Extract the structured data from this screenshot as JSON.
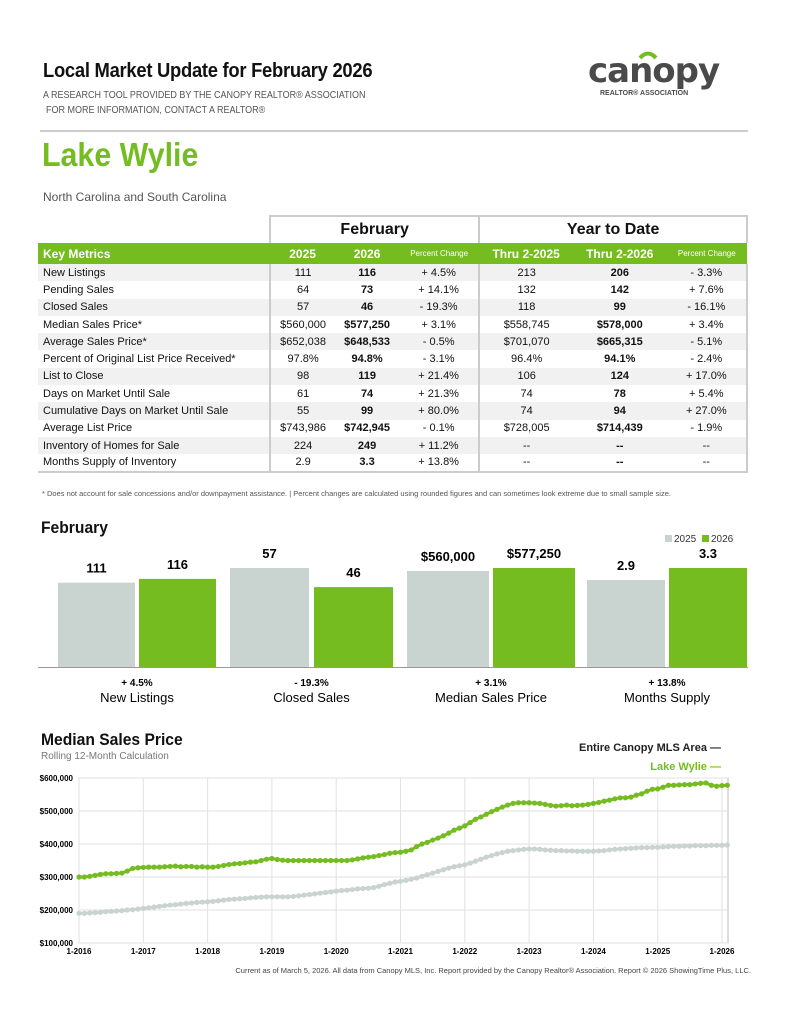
{
  "header": {
    "title": "Local Market Update for February 2026",
    "subtitle1": "A RESEARCH TOOL PROVIDED BY THE CANOPY REALTOR® ASSOCIATION",
    "subtitle2": "FOR MORE INFORMATION, CONTACT A REALTOR®",
    "logo_text": "canopy",
    "logo_sub": "REALTOR® ASSOCIATION"
  },
  "area": {
    "name": "Lake Wylie",
    "states": "North Carolina and South Carolina"
  },
  "colors": {
    "green": "#75bc21",
    "gray": "#c9d3d0"
  },
  "table": {
    "groups": [
      "February",
      "Year to Date"
    ],
    "headers": [
      "Key Metrics",
      "2025",
      "2026",
      "Percent Change",
      "Thru 2-2025",
      "Thru 2-2026",
      "Percent Change"
    ],
    "rows": [
      [
        "New Listings",
        "111",
        "116",
        "+ 4.5%",
        "213",
        "206",
        "- 3.3%"
      ],
      [
        "Pending Sales",
        "64",
        "73",
        "+ 14.1%",
        "132",
        "142",
        "+ 7.6%"
      ],
      [
        "Closed Sales",
        "57",
        "46",
        "- 19.3%",
        "118",
        "99",
        "- 16.1%"
      ],
      [
        "Median Sales Price*",
        "$560,000",
        "$577,250",
        "+ 3.1%",
        "$558,745",
        "$578,000",
        "+ 3.4%"
      ],
      [
        "Average Sales Price*",
        "$652,038",
        "$648,533",
        "- 0.5%",
        "$701,070",
        "$665,315",
        "- 5.1%"
      ],
      [
        "Percent of Original List Price Received*",
        "97.8%",
        "94.8%",
        "- 3.1%",
        "96.4%",
        "94.1%",
        "- 2.4%"
      ],
      [
        "List to Close",
        "98",
        "119",
        "+ 21.4%",
        "106",
        "124",
        "+ 17.0%"
      ],
      [
        "Days on Market Until Sale",
        "61",
        "74",
        "+ 21.3%",
        "74",
        "78",
        "+ 5.4%"
      ],
      [
        "Cumulative Days on Market Until Sale",
        "55",
        "99",
        "+ 80.0%",
        "74",
        "94",
        "+ 27.0%"
      ],
      [
        "Average List Price",
        "$743,986",
        "$742,945",
        "- 0.1%",
        "$728,005",
        "$714,439",
        "- 1.9%"
      ],
      [
        "Inventory of Homes for Sale",
        "224",
        "249",
        "+ 11.2%",
        "--",
        "--",
        "--"
      ],
      [
        "Months Supply of Inventory",
        "2.9",
        "3.3",
        "+ 13.8%",
        "--",
        "--",
        "--"
      ]
    ],
    "footnote": "* Does not account for sale concessions and/or downpayment assistance.  |  Percent changes are calculated using rounded figures and can sometimes look extreme due to small sample size."
  },
  "chart_data": [
    {
      "type": "bar",
      "title": "February",
      "series": [
        {
          "name": "2025",
          "values": [
            111,
            57,
            560000,
            2.9
          ],
          "labels": [
            "111",
            "57",
            "$560,000",
            "2.9"
          ]
        },
        {
          "name": "2026",
          "values": [
            116,
            46,
            577250,
            3.3
          ],
          "labels": [
            "116",
            "46",
            "$577,250",
            "3.3"
          ]
        }
      ],
      "categories": [
        "New Listings",
        "Closed Sales",
        "Median Sales Price",
        "Months Supply"
      ],
      "changes": [
        "+ 4.5%",
        "- 19.3%",
        "+ 3.1%",
        "+ 13.8%"
      ],
      "legend": "top-right"
    },
    {
      "type": "line",
      "title": "Median Sales Price",
      "subtitle": "Rolling 12-Month Calculation",
      "x_start": "1-2016",
      "x_end": "2-2026",
      "x_frequency": "monthly",
      "xticks": [
        "1-2016",
        "1-2017",
        "1-2018",
        "1-2019",
        "1-2020",
        "1-2021",
        "1-2022",
        "1-2023",
        "1-2024",
        "1-2025",
        "1-2026"
      ],
      "yticks": [
        "$100,000",
        "$200,000",
        "$300,000",
        "$400,000",
        "$500,000",
        "$600,000"
      ],
      "ylim": [
        100000,
        600000
      ],
      "grid": true,
      "legend": "top-right",
      "series": [
        {
          "name": "Entire Canopy MLS Area",
          "color": "#c9d3d0",
          "values": [
            190000,
            190000,
            191000,
            192000,
            193000,
            195000,
            196000,
            197000,
            198000,
            200000,
            201000,
            203000,
            205000,
            207000,
            209000,
            211000,
            213000,
            215000,
            216000,
            218000,
            220000,
            221000,
            223000,
            224000,
            225000,
            226000,
            228000,
            230000,
            232000,
            233000,
            234000,
            235000,
            237000,
            238000,
            239000,
            240000,
            240000,
            240000,
            240000,
            240000,
            241000,
            243000,
            245000,
            247000,
            249000,
            251000,
            253000,
            255000,
            257000,
            259000,
            260000,
            262000,
            264000,
            265000,
            266000,
            268000,
            272000,
            277000,
            281000,
            285000,
            287000,
            290000,
            293000,
            297000,
            302000,
            307000,
            312000,
            317000,
            322000,
            327000,
            331000,
            334000,
            337000,
            342000,
            348000,
            354000,
            360000,
            365000,
            370000,
            374000,
            378000,
            380000,
            382000,
            384000,
            385000,
            385000,
            384000,
            382000,
            381000,
            380000,
            380000,
            379000,
            379000,
            378000,
            378000,
            378000,
            378000,
            379000,
            380000,
            382000,
            384000,
            385000,
            386000,
            387000,
            388000,
            389000,
            389000,
            390000,
            390000,
            391000,
            392000,
            393000,
            393000,
            394000,
            394000,
            395000,
            395000,
            395000,
            396000,
            396000,
            396000,
            397000
          ]
        },
        {
          "name": "Lake Wylie",
          "color": "#75bc21",
          "values": [
            300000,
            300000,
            302000,
            305000,
            308000,
            310000,
            310000,
            311000,
            312000,
            318000,
            326000,
            328000,
            329000,
            330000,
            330000,
            330000,
            331000,
            332000,
            333000,
            331000,
            332000,
            332000,
            330000,
            331000,
            330000,
            330000,
            332000,
            335000,
            338000,
            340000,
            341000,
            343000,
            345000,
            346000,
            350000,
            354000,
            356000,
            353000,
            351000,
            350000,
            350000,
            350000,
            350000,
            350000,
            350000,
            350000,
            350000,
            350000,
            350000,
            350000,
            350000,
            352000,
            355000,
            358000,
            360000,
            362000,
            365000,
            368000,
            372000,
            374000,
            375000,
            378000,
            382000,
            392000,
            400000,
            405000,
            412000,
            418000,
            425000,
            433000,
            442000,
            448000,
            455000,
            465000,
            475000,
            482000,
            490000,
            498000,
            505000,
            512000,
            518000,
            523000,
            525000,
            525000,
            525000,
            524000,
            523000,
            520000,
            517000,
            515000,
            516000,
            518000,
            516000,
            517000,
            518000,
            520000,
            523000,
            526000,
            530000,
            533000,
            537000,
            540000,
            540000,
            542000,
            548000,
            552000,
            560000,
            566000,
            567000,
            572000,
            578000,
            578000,
            579000,
            580000,
            580000,
            582000,
            584000,
            585000,
            578000,
            575000,
            577000,
            578000
          ]
        }
      ]
    }
  ],
  "footer": "Current as of March 5, 2026. All data from Canopy MLS, Inc. Report provided by the Canopy Realtor® Association. Report © 2026 ShowingTime Plus, LLC."
}
